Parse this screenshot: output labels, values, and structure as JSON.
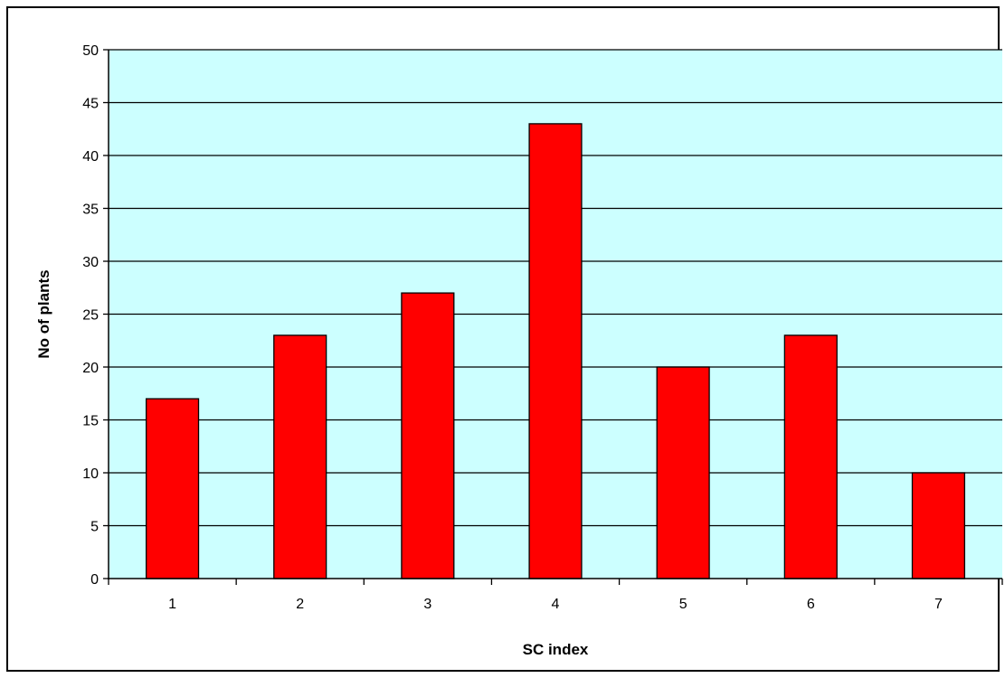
{
  "chart_data": {
    "type": "bar",
    "title": "",
    "xlabel": "SC index",
    "ylabel": "No of plants",
    "categories": [
      "1",
      "2",
      "3",
      "4",
      "5",
      "6",
      "7"
    ],
    "series": [
      {
        "values": [
          17,
          23,
          27,
          43,
          20,
          23,
          10
        ]
      }
    ],
    "ylim": [
      0,
      50
    ],
    "yticks": [
      0,
      5,
      10,
      15,
      20,
      25,
      30,
      35,
      40,
      45,
      50
    ],
    "grid": true,
    "legend": "none",
    "colors": {
      "plot_background": "#CCFFFF",
      "bar_fill": "#FF0000",
      "bar_stroke": "#000000",
      "gridline": "#000000"
    }
  }
}
